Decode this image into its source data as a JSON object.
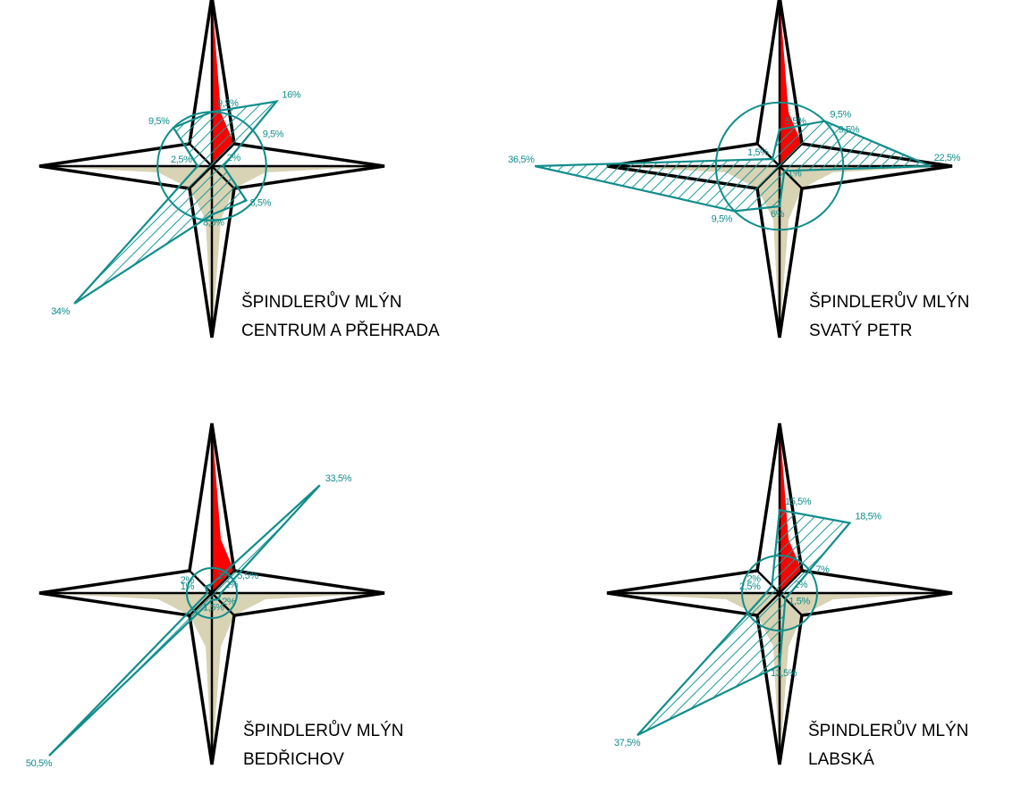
{
  "colors": {
    "star_fill": "#d8d3b4",
    "star_outline": "#000000",
    "north_fill": "#ff0000",
    "rose_stroke": "#108d8b",
    "hatch": "#1a9a97",
    "label": "#108d8b"
  },
  "chart_data": [
    {
      "type": "radar",
      "subtype": "wind-rose",
      "title_line1": "ŠPINDLERŮV MLÝN",
      "title_line2": "CENTRUM A PŘEHRADA",
      "directions": [
        "N",
        "NE",
        "E",
        "SE",
        "S",
        "SW",
        "W",
        "NW"
      ],
      "values": [
        9.5,
        16,
        2,
        8.5,
        8.5,
        34,
        2.5,
        9.5
      ],
      "value_labels": [
        "9,5%",
        "16%",
        "2%",
        "8,5%",
        "8,5%",
        "34%",
        "2,5%",
        "9,5%"
      ],
      "reference_circle_label": "9,5%",
      "reference_circle_value": 9.5,
      "unit": "%"
    },
    {
      "type": "radar",
      "subtype": "wind-rose",
      "title_line1": "ŠPINDLERŮV MLÝN",
      "title_line2": "SVATÝ PETR",
      "directions": [
        "N",
        "NE",
        "E",
        "SE",
        "S",
        "SW",
        "W",
        "NW"
      ],
      "values": [
        5.5,
        9.5,
        22.5,
        1,
        6,
        9.5,
        36.5,
        1.5
      ],
      "value_labels": [
        "5,5%",
        "9,5%",
        "22,5%",
        "1%",
        "6%",
        "9,5%",
        "36,5%",
        "1,5%"
      ],
      "reference_circle_label": "9,5%",
      "reference_circle_value": 9.5,
      "unit": "%"
    },
    {
      "type": "radar",
      "subtype": "wind-rose",
      "title_line1": "ŠPINDLERŮV MLÝN",
      "title_line2": "BEDŘICHOV",
      "directions": [
        "N",
        "NE",
        "E",
        "SE",
        "S",
        "SW",
        "W",
        "NW"
      ],
      "values": [
        2,
        33.5,
        2,
        2,
        1.5,
        50.5,
        1,
        2
      ],
      "value_labels": [
        "2%",
        "33,5%",
        "2%",
        "2%",
        "1,5%",
        "50,5%",
        "1%",
        "2%"
      ],
      "reference_circle_label": "5,5%",
      "reference_circle_value": 5.5,
      "unit": "%"
    },
    {
      "type": "radar",
      "subtype": "wind-rose",
      "title_line1": "ŠPINDLERŮV MLÝN",
      "title_line2": "LABSKÁ",
      "directions": [
        "N",
        "NE",
        "E",
        "SE",
        "S",
        "SW",
        "W",
        "NW"
      ],
      "values": [
        15.5,
        18.5,
        2,
        1.5,
        13.5,
        37.5,
        2.5,
        2
      ],
      "value_labels": [
        "15,5%",
        "18,5%",
        "2%",
        "1,5%",
        "13,5%",
        "37,5%",
        "2,5%",
        "2%"
      ],
      "reference_circle_label": "7%",
      "reference_circle_value": 7,
      "unit": "%"
    }
  ]
}
